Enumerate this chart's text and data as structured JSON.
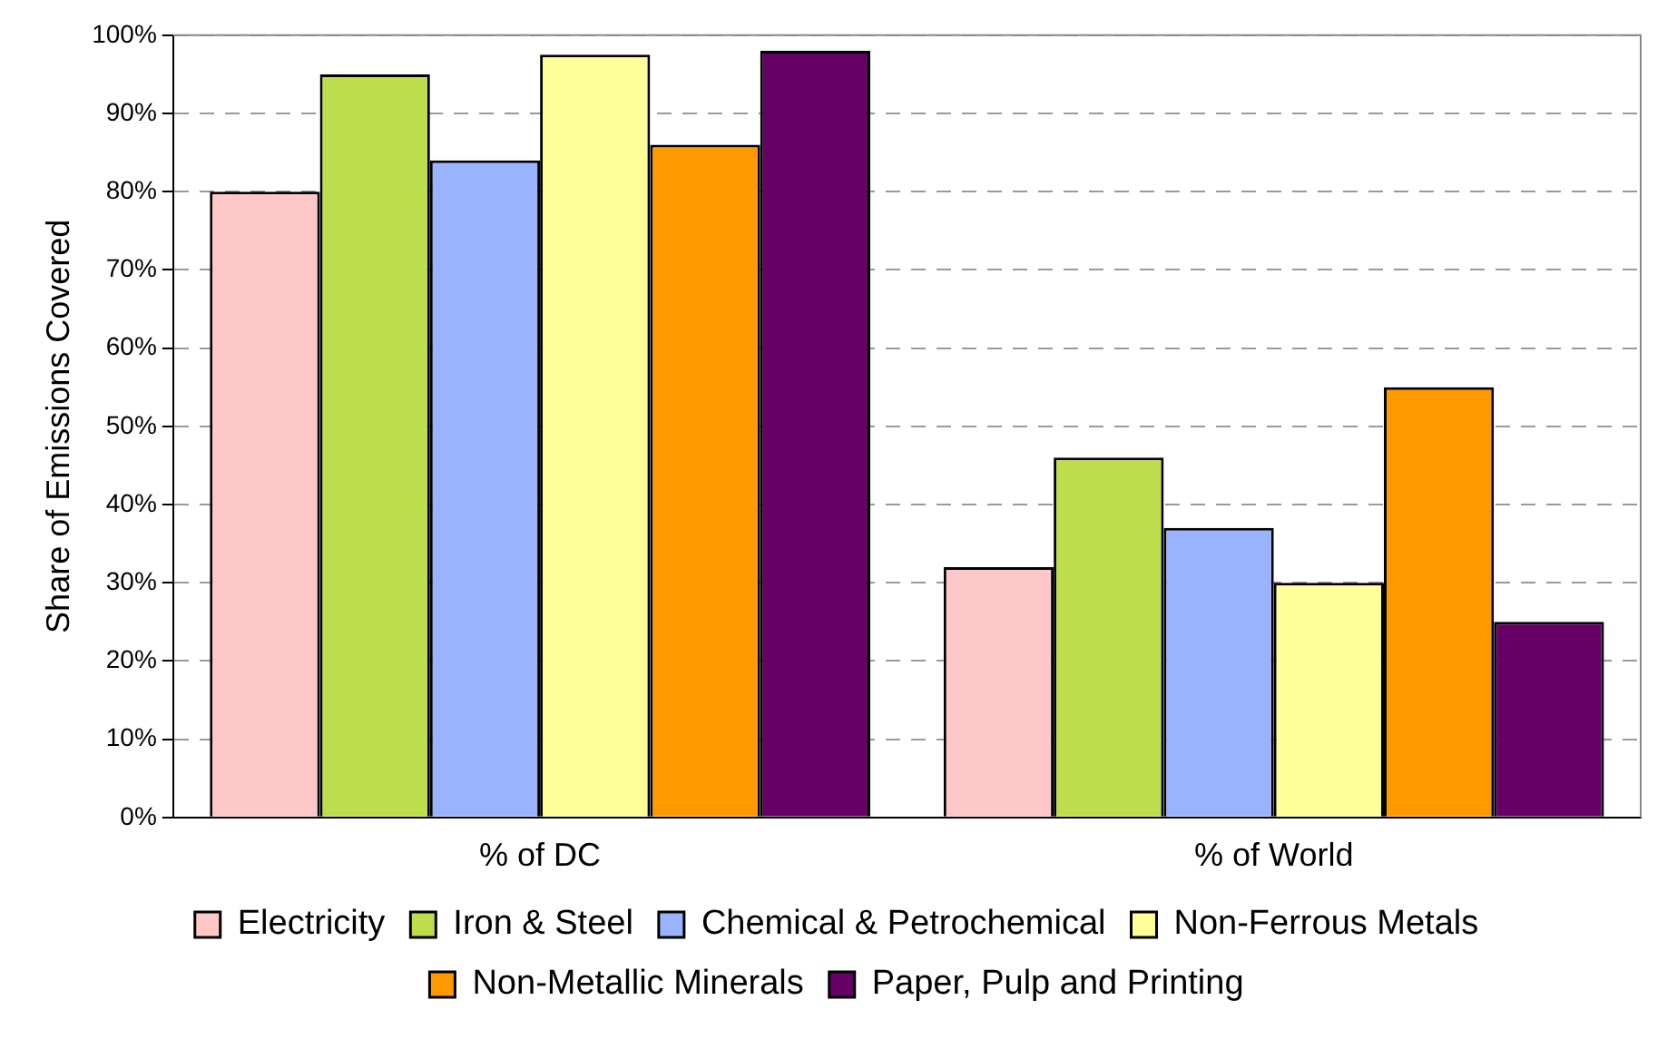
{
  "chart_data": {
    "type": "bar",
    "ylabel": "Share of Emissions Covered",
    "categories": [
      "% of DC",
      "% of World"
    ],
    "series": [
      {
        "name": "Electricity",
        "color": "#ffc8c8",
        "values": [
          80,
          32
        ]
      },
      {
        "name": "Iron & Steel",
        "color": "#bedd4c",
        "values": [
          95,
          46
        ]
      },
      {
        "name": "Chemical & Petrochemical",
        "color": "#99b3ff",
        "values": [
          84,
          37
        ]
      },
      {
        "name": "Non-Ferrous Metals",
        "color": "#ffff99",
        "values": [
          97.5,
          30
        ]
      },
      {
        "name": "Non-Metallic Minerals",
        "color": "#ff9900",
        "values": [
          86,
          55
        ]
      },
      {
        "name": "Paper, Pulp and Printing",
        "color": "#660066",
        "values": [
          98,
          25
        ]
      }
    ],
    "ylim": [
      0,
      100
    ],
    "yticks": [
      {
        "value": 0,
        "label": "0%"
      },
      {
        "value": 10,
        "label": "10%"
      },
      {
        "value": 20,
        "label": "20%"
      },
      {
        "value": 30,
        "label": "30%"
      },
      {
        "value": 40,
        "label": "40%"
      },
      {
        "value": 50,
        "label": "50%"
      },
      {
        "value": 60,
        "label": "60%"
      },
      {
        "value": 70,
        "label": "70%"
      },
      {
        "value": 80,
        "label": "80%"
      },
      {
        "value": 90,
        "label": "90%"
      },
      {
        "value": 100,
        "label": "100%"
      }
    ],
    "grid": "y",
    "legend": "bottom"
  }
}
